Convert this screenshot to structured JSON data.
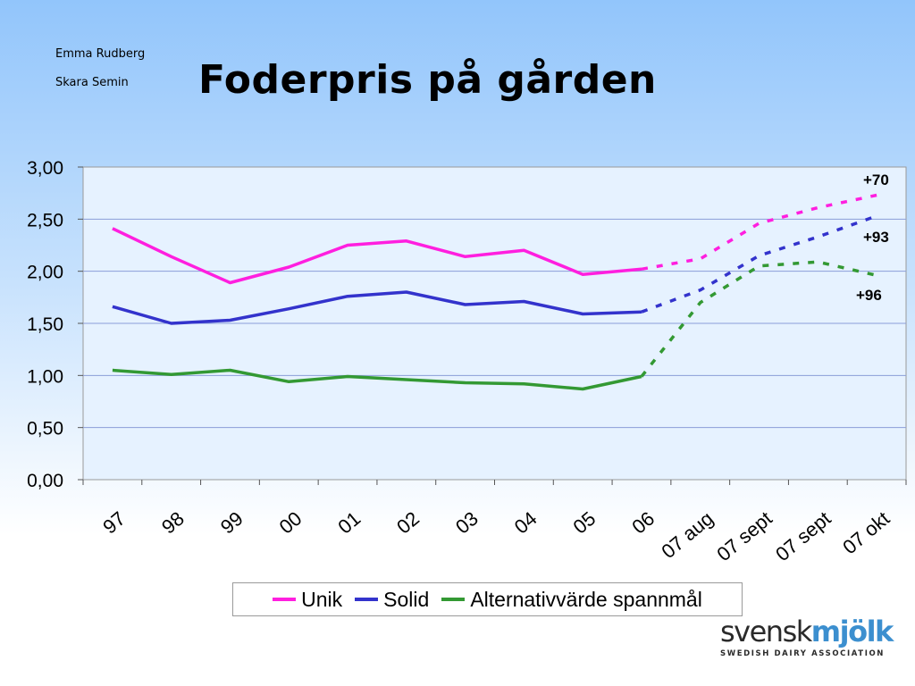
{
  "header": {
    "author": "Emma Rudberg",
    "place": "Skara Semin",
    "title": "Foderpris på gården"
  },
  "chart_data": {
    "type": "line",
    "title": "Foderpris på gården",
    "xlabel": "",
    "ylabel": "",
    "ylim": [
      0,
      3
    ],
    "yticks": [
      "0,00",
      "0,50",
      "1,00",
      "1,50",
      "2,00",
      "2,50",
      "3,00"
    ],
    "grid": true,
    "legend_position": "bottom",
    "categories": [
      "97",
      "98",
      "99",
      "00",
      "01",
      "02",
      "03",
      "04",
      "05",
      "06",
      "07 aug",
      "07 sept",
      "07 sept",
      "07 okt"
    ],
    "series": [
      {
        "name": "Unik",
        "color": "#ff1fdf",
        "values": [
          2.41,
          2.14,
          1.89,
          2.04,
          2.25,
          2.29,
          2.14,
          2.2,
          1.97,
          2.02,
          2.12,
          2.46,
          2.61,
          2.73
        ],
        "annotation": "+70"
      },
      {
        "name": "Solid",
        "color": "#3333cc",
        "values": [
          1.66,
          1.5,
          1.53,
          1.64,
          1.76,
          1.8,
          1.68,
          1.71,
          1.59,
          1.61,
          1.82,
          2.15,
          2.33,
          2.53
        ],
        "annotation": "+93"
      },
      {
        "name": "Alternativvärde spannmål",
        "color": "#339933",
        "values": [
          1.05,
          1.01,
          1.05,
          0.94,
          0.99,
          0.96,
          0.93,
          0.92,
          0.87,
          0.99,
          1.7,
          2.05,
          2.09,
          1.96
        ],
        "annotation": "+96"
      }
    ],
    "dashed_from_index": 9,
    "plot_background": "#e6f2ff",
    "grid_color": "#8a9ed8"
  },
  "legend": {
    "items": [
      {
        "label": "Unik",
        "color": "#ff1fdf"
      },
      {
        "label": "Solid",
        "color": "#3333cc"
      },
      {
        "label": "Alternativvärde spannmål",
        "color": "#339933"
      }
    ]
  },
  "logo": {
    "word_a": "svensk",
    "word_b": "mjölk",
    "tagline": "SWEDISH DAIRY ASSOCIATION"
  }
}
